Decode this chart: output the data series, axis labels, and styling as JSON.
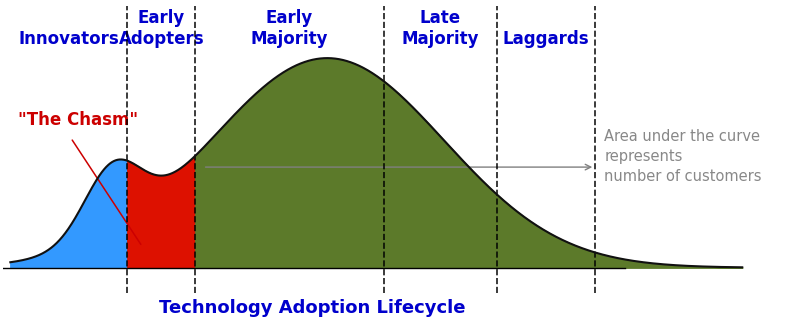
{
  "title": "Technology Adoption Lifecycle",
  "title_color": "#0000CC",
  "title_fontsize": 13,
  "background_color": "#ffffff",
  "segments": [
    "Innovators",
    "Early\nAdopters",
    "Early\nMajority",
    "Late\nMajority",
    "Laggards"
  ],
  "segment_color": "#0000CC",
  "segment_label_fontsize": 12,
  "chasm_label": "\"The Chasm\"",
  "chasm_color": "#CC0000",
  "chasm_fontsize": 12,
  "annotation_text": "Area under the curve\nrepresents\nnumber of customers",
  "annotation_color": "#888888",
  "annotation_fontsize": 10.5,
  "blue_fill": "#3399FF",
  "red_fill": "#DD1100",
  "green_fill": "#5C7A2A",
  "curve_color": "#111111",
  "curve_linewidth": 1.5,
  "d1": 0.155,
  "d2": 0.245,
  "d3": 0.495,
  "d4": 0.645,
  "d5": 0.775
}
